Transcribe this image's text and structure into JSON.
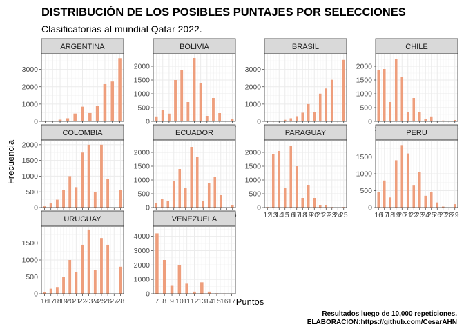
{
  "chart_data": {
    "type": "bar",
    "title": "DISTRIBUCIÓN DE LOS POSIBLES PUNTAJES POR SELECCIONES",
    "subtitle": "Clasificatorias al mundial Qatar 2022.",
    "xlabel": "Puntos",
    "ylabel": "Frecuencia",
    "caption_lines": [
      "Resultados luego de 10,000 repeticiones.",
      "ELABORACION:https://github.com/CesarAHN"
    ],
    "bar_color": "#ee9e7c",
    "facets": [
      {
        "name": "ARGENTINA",
        "xlim": [
          33.5,
          44.5
        ],
        "ylim": [
          0,
          3900
        ],
        "yticks": [
          0,
          1000,
          2000,
          3000
        ],
        "xtick_labels": [
          "34",
          "35",
          "36",
          "37",
          "38",
          "39",
          "40",
          "41",
          "42",
          "43",
          "44"
        ],
        "points": [
          [
            34,
            10
          ],
          [
            35,
            40
          ],
          [
            36,
            100
          ],
          [
            37,
            180
          ],
          [
            38,
            450
          ],
          [
            39,
            850
          ],
          [
            40,
            480
          ],
          [
            41,
            900
          ],
          [
            42,
            2150
          ],
          [
            43,
            2300
          ],
          [
            44,
            3650
          ]
        ]
      },
      {
        "name": "BOLIVIA",
        "xlim": [
          14.5,
          27.5
        ],
        "ylim": [
          0,
          2450
        ],
        "yticks": [
          0,
          500,
          1000,
          1500,
          2000
        ],
        "xtick_labels": [
          "15",
          "16",
          "17",
          "18",
          "19",
          "20",
          "21",
          "22",
          "23",
          "24",
          "25",
          "26",
          "27"
        ],
        "points": [
          [
            15,
            180
          ],
          [
            16,
            400
          ],
          [
            17,
            280
          ],
          [
            18,
            1500
          ],
          [
            19,
            1850
          ],
          [
            20,
            700
          ],
          [
            21,
            2300
          ],
          [
            22,
            1400
          ],
          [
            23,
            200
          ],
          [
            24,
            850
          ],
          [
            25,
            300
          ],
          [
            27,
            100
          ]
        ]
      },
      {
        "name": "BRASIL",
        "xlim": [
          34.5,
          48.5
        ],
        "ylim": [
          0,
          3900
        ],
        "yticks": [
          0,
          1000,
          2000,
          3000
        ],
        "xtick_labels": [
          "35",
          "36",
          "37",
          "38",
          "39",
          "40",
          "41",
          "42",
          "43",
          "44",
          "45",
          "46",
          "47",
          "48"
        ],
        "points": [
          [
            36,
            10
          ],
          [
            37,
            40
          ],
          [
            38,
            90
          ],
          [
            39,
            180
          ],
          [
            40,
            300
          ],
          [
            41,
            500
          ],
          [
            42,
            1000
          ],
          [
            43,
            550
          ],
          [
            44,
            1600
          ],
          [
            45,
            1900
          ],
          [
            46,
            2400
          ],
          [
            48,
            3550
          ]
        ]
      },
      {
        "name": "CHILE",
        "xlim": [
          15.5,
          29.5
        ],
        "ylim": [
          0,
          2450
        ],
        "yticks": [
          0,
          500,
          1000,
          1500,
          2000
        ],
        "xtick_labels": [
          "16",
          "17",
          "18",
          "19",
          "20",
          "21",
          "22",
          "23",
          "24",
          "25",
          "26",
          "27",
          "28",
          "29"
        ],
        "points": [
          [
            16,
            1850
          ],
          [
            17,
            1900
          ],
          [
            18,
            700
          ],
          [
            19,
            2250
          ],
          [
            20,
            1600
          ],
          [
            21,
            350
          ],
          [
            22,
            850
          ],
          [
            23,
            350
          ],
          [
            24,
            100
          ],
          [
            25,
            180
          ],
          [
            26,
            20
          ],
          [
            27,
            30
          ],
          [
            29,
            50
          ]
        ]
      },
      {
        "name": "COLOMBIA",
        "xlim": [
          16.5,
          29.5
        ],
        "ylim": [
          0,
          2150
        ],
        "yticks": [
          0,
          500,
          1000,
          1500,
          2000
        ],
        "xtick_labels": [
          "17",
          "18",
          "19",
          "20",
          "21",
          "22",
          "23",
          "24",
          "25",
          "26",
          "27",
          "28",
          "29"
        ],
        "points": [
          [
            17,
            40
          ],
          [
            18,
            130
          ],
          [
            19,
            250
          ],
          [
            20,
            550
          ],
          [
            21,
            1000
          ],
          [
            22,
            650
          ],
          [
            23,
            1750
          ],
          [
            24,
            2000
          ],
          [
            25,
            500
          ],
          [
            26,
            2000
          ],
          [
            27,
            900
          ],
          [
            29,
            550
          ]
        ]
      },
      {
        "name": "ECUADOR",
        "xlim": [
          22.5,
          36.5
        ],
        "ylim": [
          0,
          2450
        ],
        "yticks": [
          0,
          500,
          1000,
          1500,
          2000
        ],
        "xtick_labels": [
          "23",
          "24",
          "25",
          "26",
          "27",
          "28",
          "29",
          "30",
          "31",
          "32",
          "33",
          "34",
          "35",
          "36"
        ],
        "points": [
          [
            23,
            150
          ],
          [
            24,
            300
          ],
          [
            25,
            250
          ],
          [
            26,
            950
          ],
          [
            27,
            1400
          ],
          [
            28,
            700
          ],
          [
            29,
            2200
          ],
          [
            30,
            1850
          ],
          [
            31,
            250
          ],
          [
            32,
            900
          ],
          [
            33,
            1100
          ],
          [
            34,
            450
          ],
          [
            36,
            100
          ]
        ]
      },
      {
        "name": "PARAGUAY",
        "xlim": [
          11.5,
          25.5
        ],
        "ylim": [
          0,
          2450
        ],
        "yticks": [
          0,
          500,
          1000,
          1500,
          2000
        ],
        "xtick_labels": [
          "12",
          "13",
          "14",
          "15",
          "16",
          "17",
          "18",
          "19",
          "20",
          "21",
          "22",
          "23",
          "24",
          "25"
        ],
        "points": [
          [
            12,
            20
          ],
          [
            13,
            1950
          ],
          [
            14,
            2050
          ],
          [
            15,
            700
          ],
          [
            16,
            2250
          ],
          [
            17,
            1500
          ],
          [
            18,
            350
          ],
          [
            19,
            800
          ],
          [
            20,
            350
          ],
          [
            21,
            80
          ],
          [
            22,
            100
          ],
          [
            23,
            20
          ],
          [
            25,
            20
          ]
        ]
      },
      {
        "name": "PERU",
        "xlim": [
          15.5,
          29.5
        ],
        "ylim": [
          0,
          2000
        ],
        "yticks": [
          0,
          500,
          1000,
          1500
        ],
        "xtick_labels": [
          "16",
          "17",
          "18",
          "19",
          "20",
          "21",
          "22",
          "23",
          "24",
          "25",
          "26",
          "27",
          "28",
          "29"
        ],
        "points": [
          [
            16,
            450
          ],
          [
            17,
            800
          ],
          [
            18,
            300
          ],
          [
            19,
            1400
          ],
          [
            20,
            1850
          ],
          [
            21,
            1600
          ],
          [
            22,
            650
          ],
          [
            23,
            1050
          ],
          [
            24,
            350
          ],
          [
            25,
            450
          ],
          [
            26,
            150
          ],
          [
            27,
            30
          ],
          [
            29,
            100
          ]
        ]
      },
      {
        "name": "URUGUAY",
        "xlim": [
          15.5,
          28.5
        ],
        "ylim": [
          0,
          2000
        ],
        "yticks": [
          0,
          500,
          1000,
          1500
        ],
        "xtick_labels": [
          "16",
          "17",
          "18",
          "19",
          "20",
          "21",
          "22",
          "23",
          "24",
          "25",
          "26",
          "27",
          "28"
        ],
        "points": [
          [
            16,
            50
          ],
          [
            17,
            150
          ],
          [
            18,
            200
          ],
          [
            19,
            500
          ],
          [
            20,
            1000
          ],
          [
            21,
            650
          ],
          [
            22,
            1450
          ],
          [
            23,
            1900
          ],
          [
            24,
            700
          ],
          [
            25,
            1650
          ],
          [
            26,
            1450
          ],
          [
            28,
            800
          ]
        ]
      },
      {
        "name": "VENEZUELA",
        "xlim": [
          6.5,
          17.5
        ],
        "ylim": [
          0,
          4700
        ],
        "yticks": [
          0,
          1000,
          2000,
          3000,
          4000
        ],
        "xtick_labels": [
          "7",
          "8",
          "9",
          "10",
          "11",
          "12",
          "13",
          "14",
          "15",
          "16",
          "17"
        ],
        "points": [
          [
            7,
            4200
          ],
          [
            8,
            2350
          ],
          [
            9,
            550
          ],
          [
            10,
            2000
          ],
          [
            11,
            700
          ],
          [
            12,
            150
          ],
          [
            13,
            800
          ],
          [
            14,
            150
          ],
          [
            15,
            30
          ],
          [
            16,
            20
          ],
          [
            17,
            10
          ]
        ]
      }
    ]
  }
}
